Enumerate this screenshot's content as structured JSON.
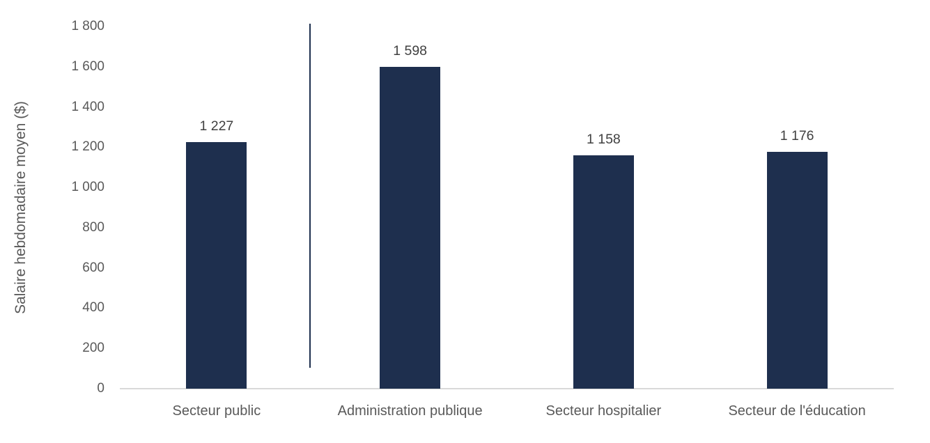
{
  "chart_data": {
    "type": "bar",
    "title": "",
    "xlabel": "",
    "ylabel": "Salaire hebdomadaire moyen ($)",
    "categories": [
      "Secteur public",
      "Administration publique",
      "Secteur hospitalier",
      "Secteur de l'éducation"
    ],
    "values": [
      1227,
      1598,
      1158,
      1176
    ],
    "data_labels": [
      "1 227",
      "1 598",
      "1 158",
      "1 176"
    ],
    "ylim": [
      0,
      1800
    ],
    "ytick_interval": 200,
    "yticks": [
      0,
      200,
      400,
      600,
      800,
      1000,
      1200,
      1400,
      1600,
      1800
    ],
    "ytick_labels": [
      "0",
      "200",
      "400",
      "600",
      "800",
      "1 000",
      "1 200",
      "1 400",
      "1 600",
      "1 800"
    ],
    "grid": false,
    "legend": false,
    "annotations": [
      {
        "type": "vertical-separator-line",
        "between_categories": [
          "Secteur public",
          "Administration publique"
        ],
        "value_span_approx": [
          105,
          1815
        ]
      }
    ],
    "colors": {
      "bar": "#1e2f4e",
      "separator_line": "#1e2f4e",
      "axis_line": "#d9d9d9",
      "tick_label": "#595959",
      "category_label": "#595959",
      "data_label": "#404040",
      "axis_title": "#595959",
      "background": "#ffffff"
    }
  }
}
